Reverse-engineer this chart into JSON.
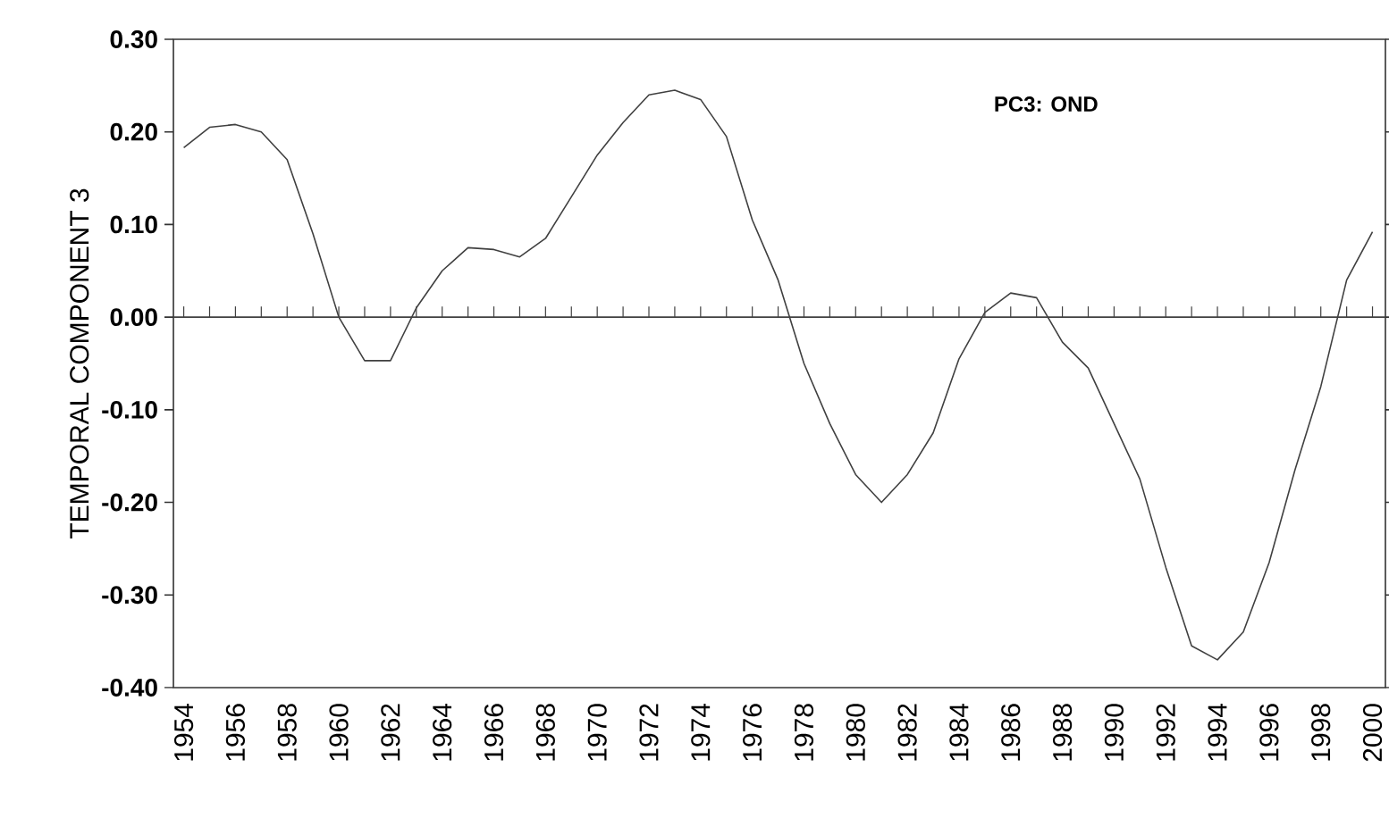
{
  "chart_data": {
    "type": "line",
    "ylabel": "TEMPORAL COMPONENT 3",
    "annotations": [
      "PC3: OND"
    ],
    "x": [
      1954,
      1955,
      1956,
      1957,
      1958,
      1959,
      1960,
      1961,
      1962,
      1963,
      1964,
      1965,
      1966,
      1967,
      1968,
      1969,
      1970,
      1971,
      1972,
      1973,
      1974,
      1975,
      1976,
      1977,
      1978,
      1979,
      1980,
      1981,
      1982,
      1983,
      1984,
      1985,
      1986,
      1987,
      1988,
      1989,
      1990,
      1991,
      1992,
      1993,
      1994,
      1995,
      1996,
      1997,
      1998,
      1999,
      2000
    ],
    "series": [
      {
        "color": "#404040",
        "values": [
          0.183,
          0.205,
          0.208,
          0.2,
          0.17,
          0.09,
          0.0,
          -0.047,
          -0.047,
          0.01,
          0.05,
          0.075,
          0.073,
          0.065,
          0.085,
          0.13,
          0.175,
          0.21,
          0.24,
          0.245,
          0.235,
          0.195,
          0.105,
          0.04,
          -0.05,
          -0.115,
          -0.17,
          -0.2,
          -0.17,
          -0.125,
          -0.045,
          0.005,
          0.026,
          0.021,
          -0.027,
          -0.055,
          -0.115,
          -0.175,
          -0.27,
          -0.355,
          -0.37,
          -0.34,
          -0.265,
          -0.165,
          -0.075,
          0.04,
          0.092
        ]
      }
    ],
    "xlim": [
      1953.6,
      2000.5
    ],
    "ylim": [
      -0.4,
      0.3
    ],
    "xticks": [
      1954,
      1956,
      1958,
      1960,
      1962,
      1964,
      1966,
      1968,
      1970,
      1972,
      1974,
      1976,
      1978,
      1980,
      1982,
      1984,
      1986,
      1988,
      1990,
      1992,
      1994,
      1996,
      1998,
      2000
    ],
    "yticks": [
      {
        "value": -0.4,
        "label": "-0.40"
      },
      {
        "value": -0.3,
        "label": "-0.30"
      },
      {
        "value": -0.2,
        "label": "-0.20"
      },
      {
        "value": -0.1,
        "label": "-0.10"
      },
      {
        "value": 0,
        "label": "0.00"
      },
      {
        "value": 0.1,
        "label": "0.10"
      },
      {
        "value": 0.2,
        "label": "0.20"
      },
      {
        "value": 0.3,
        "label": "0.30"
      }
    ],
    "ref_lines": [
      {
        "axis": "y",
        "value": 0,
        "color": "#404040"
      }
    ],
    "marker": "none",
    "line_style": "solid"
  }
}
